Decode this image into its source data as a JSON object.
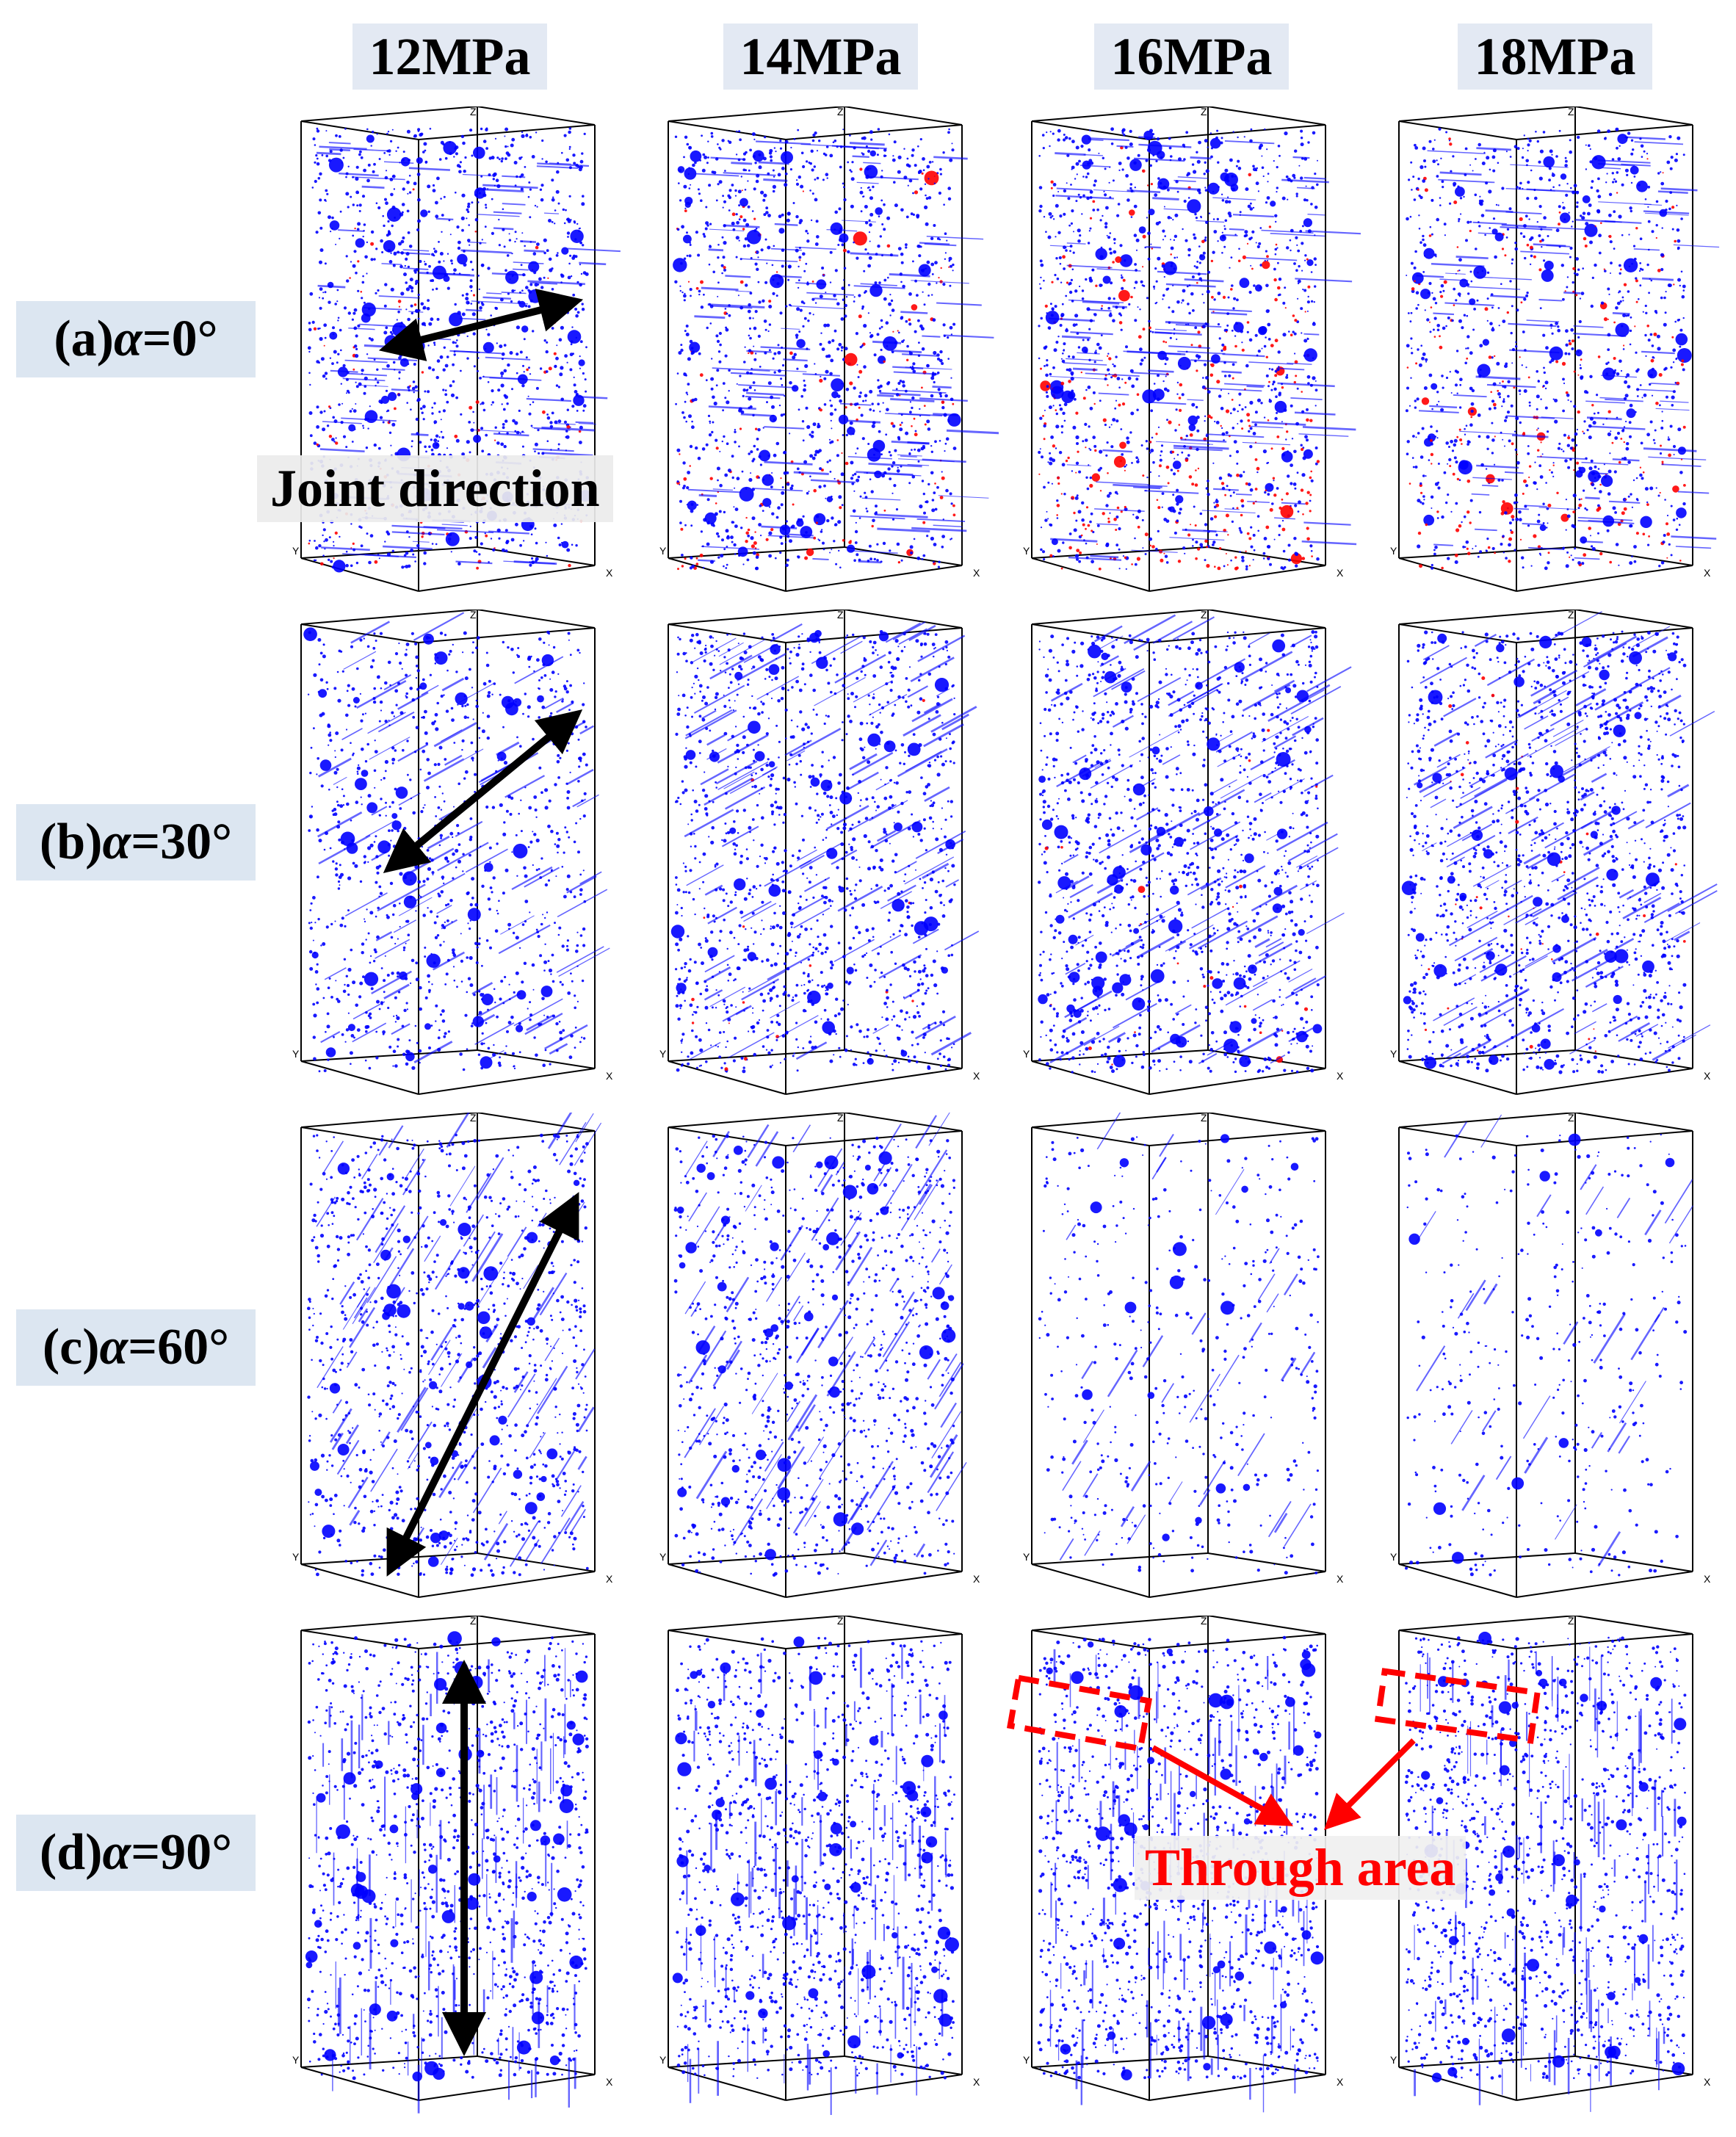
{
  "columns": [
    "12MPa",
    "14MPa",
    "16MPa",
    "18MPa"
  ],
  "rows": [
    {
      "prefix": "(a) ",
      "symbol": "α",
      "value": "=0°"
    },
    {
      "prefix": "(b) ",
      "symbol": "α",
      "value": "=30°"
    },
    {
      "prefix": "(c) ",
      "symbol": "α",
      "value": "=60°"
    },
    {
      "prefix": "(d) ",
      "symbol": "α",
      "value": "=90°"
    }
  ],
  "annotations": {
    "joint_direction": "Joint direction",
    "through_area": "Through area"
  },
  "axis_letters": {
    "x": "X",
    "y": "Y",
    "z": "Z"
  },
  "colors": {
    "crack_blue": "#0000ff",
    "crack_red": "#ff0000",
    "arrow": "#000000",
    "highlight": "#ff0000"
  }
}
